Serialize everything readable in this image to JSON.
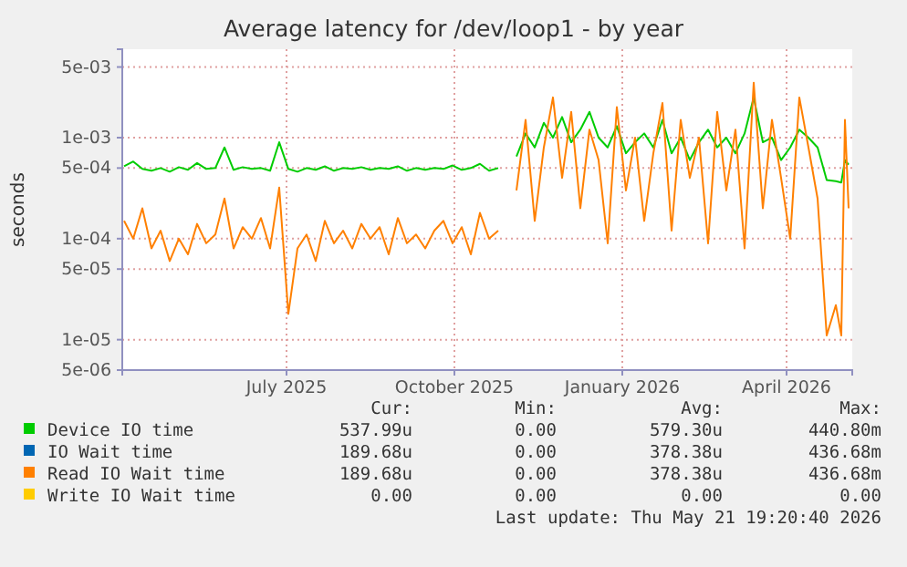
{
  "chart_data": {
    "type": "line",
    "title": "Average latency for /dev/loop1 - by year",
    "ylabel": "seconds",
    "log": true,
    "grid": true,
    "legend": "bottom",
    "x": [
      "2025-04-03",
      "2025-04-08",
      "2025-04-13",
      "2025-04-18",
      "2025-04-23",
      "2025-04-28",
      "2025-05-03",
      "2025-05-08",
      "2025-05-13",
      "2025-05-18",
      "2025-05-23",
      "2025-05-28",
      "2025-06-02",
      "2025-06-07",
      "2025-06-12",
      "2025-06-17",
      "2025-06-22",
      "2025-06-27",
      "2025-07-02",
      "2025-07-07",
      "2025-07-12",
      "2025-07-17",
      "2025-07-22",
      "2025-07-27",
      "2025-08-01",
      "2025-08-06",
      "2025-08-11",
      "2025-08-16",
      "2025-08-21",
      "2025-08-26",
      "2025-08-31",
      "2025-09-05",
      "2025-09-10",
      "2025-09-15",
      "2025-09-20",
      "2025-09-25",
      "2025-09-30",
      "2025-10-05",
      "2025-10-10",
      "2025-10-15",
      "2025-10-20",
      "2025-10-25",
      "2025-10-30",
      "2025-11-04",
      "2025-11-09",
      "2025-11-14",
      "2025-11-19",
      "2025-11-24",
      "2025-11-29",
      "2025-12-04",
      "2025-12-09",
      "2025-12-14",
      "2025-12-19",
      "2025-12-24",
      "2025-12-29",
      "2026-01-03",
      "2026-01-08",
      "2026-01-13",
      "2026-01-18",
      "2026-01-23",
      "2026-01-28",
      "2026-02-02",
      "2026-02-07",
      "2026-02-12",
      "2026-02-17",
      "2026-02-22",
      "2026-02-27",
      "2026-03-04",
      "2026-03-09",
      "2026-03-14",
      "2026-03-19",
      "2026-03-24",
      "2026-03-29",
      "2026-04-03",
      "2026-04-08",
      "2026-04-13",
      "2026-04-18",
      "2026-04-23",
      "2026-04-28",
      "2026-05-01",
      "2026-05-03",
      "2026-05-05"
    ],
    "xlim": [
      "2025-04-02",
      "2026-05-07"
    ],
    "xticks": [
      {
        "value": "2025-07-01",
        "label": "July 2025"
      },
      {
        "value": "2025-10-01",
        "label": "October 2025"
      },
      {
        "value": "2026-01-01",
        "label": "January 2026"
      },
      {
        "value": "2026-04-01",
        "label": "April 2026"
      }
    ],
    "ylim": [
      5e-06,
      0.0075
    ],
    "yticks": [
      {
        "value": 5e-06,
        "label": "5e-06"
      },
      {
        "value": 1e-05,
        "label": "1e-05"
      },
      {
        "value": 5e-05,
        "label": "5e-05"
      },
      {
        "value": 0.0001,
        "label": "1e-04"
      },
      {
        "value": 0.0005,
        "label": "5e-04"
      },
      {
        "value": 0.001,
        "label": "1e-03"
      },
      {
        "value": 0.005,
        "label": "5e-03"
      }
    ],
    "series": [
      {
        "name": "Device IO time",
        "color": "#00cc00",
        "values": [
          0.00052,
          0.00058,
          0.00049,
          0.00047,
          0.0005,
          0.00046,
          0.00051,
          0.00048,
          0.00056,
          0.00049,
          0.0005,
          0.0008,
          0.00048,
          0.00051,
          0.00049,
          0.0005,
          0.00047,
          0.0009,
          0.00049,
          0.00046,
          0.0005,
          0.00048,
          0.00052,
          0.00047,
          0.0005,
          0.00049,
          0.00051,
          0.00048,
          0.0005,
          0.00049,
          0.00052,
          0.00047,
          0.0005,
          0.00048,
          0.0005,
          0.00049,
          0.00053,
          0.00048,
          0.0005,
          0.00055,
          0.00047,
          0.0005,
          null,
          0.00065,
          0.0011,
          0.0008,
          0.0014,
          0.001,
          0.0016,
          0.0009,
          0.0012,
          0.0018,
          0.001,
          0.0008,
          0.0013,
          0.0007,
          0.0009,
          0.0011,
          0.0008,
          0.0015,
          0.0007,
          0.001,
          0.0006,
          0.0009,
          0.0012,
          0.0008,
          0.001,
          0.0007,
          0.0011,
          0.0025,
          0.0009,
          0.001,
          0.0006,
          0.0008,
          0.0012,
          0.001,
          0.0008,
          0.00038,
          0.00037,
          0.00036,
          0.0006,
          0.00054
        ]
      },
      {
        "name": "IO Wait time",
        "color": "#0066b3",
        "values": [
          null,
          null,
          null,
          null,
          null,
          null,
          null,
          null,
          null,
          null,
          null,
          null,
          null,
          null,
          null,
          null,
          null,
          null,
          null,
          null,
          null,
          null,
          null,
          null,
          null,
          null,
          null,
          null,
          null,
          null,
          null,
          null,
          null,
          null,
          null,
          null,
          null,
          null,
          null,
          null,
          null,
          null,
          null,
          null,
          null,
          null,
          null,
          null,
          null,
          null,
          null,
          null,
          null,
          null,
          null,
          null,
          null,
          null,
          null,
          null,
          null,
          null,
          null,
          null,
          null,
          null,
          null,
          null,
          null,
          null,
          null,
          null,
          null,
          null,
          null,
          null,
          null,
          null,
          null,
          null,
          null,
          null
        ]
      },
      {
        "name": "Read IO Wait time",
        "color": "#ff8000",
        "values": [
          0.00015,
          0.0001,
          0.0002,
          8e-05,
          0.00012,
          6e-05,
          0.0001,
          7e-05,
          0.00014,
          9e-05,
          0.00011,
          0.00025,
          8e-05,
          0.00013,
          0.0001,
          0.00016,
          8e-05,
          0.00032,
          1.8e-05,
          8e-05,
          0.00011,
          6e-05,
          0.00015,
          9e-05,
          0.00012,
          8e-05,
          0.00014,
          0.0001,
          0.00013,
          7e-05,
          0.00016,
          9e-05,
          0.00011,
          8e-05,
          0.00012,
          0.00015,
          9e-05,
          0.00013,
          7e-05,
          0.00018,
          0.0001,
          0.00012,
          null,
          0.0003,
          0.0015,
          0.00015,
          0.0008,
          0.0025,
          0.0004,
          0.0018,
          0.0002,
          0.0012,
          0.0006,
          9e-05,
          0.002,
          0.0003,
          0.001,
          0.00015,
          0.0007,
          0.0022,
          0.00012,
          0.0015,
          0.0004,
          0.001,
          9e-05,
          0.0018,
          0.0003,
          0.0012,
          8e-05,
          0.0035,
          0.0002,
          0.0015,
          0.0004,
          0.0001,
          0.0025,
          0.0008,
          0.00025,
          1.1e-05,
          2.2e-05,
          1.1e-05,
          0.0015,
          0.0002
        ]
      },
      {
        "name": "Write IO Wait time",
        "color": "#ffcc00",
        "values": [
          null,
          null,
          null,
          null,
          null,
          null,
          null,
          null,
          null,
          null,
          null,
          null,
          null,
          null,
          null,
          null,
          null,
          null,
          null,
          null,
          null,
          null,
          null,
          null,
          null,
          null,
          null,
          null,
          null,
          null,
          null,
          null,
          null,
          null,
          null,
          null,
          null,
          null,
          null,
          null,
          null,
          null,
          null,
          null,
          null,
          null,
          null,
          null,
          null,
          null,
          null,
          null,
          null,
          null,
          null,
          null,
          null,
          null,
          null,
          null,
          null,
          null,
          null,
          null,
          null,
          null,
          null,
          null,
          null,
          null,
          null,
          null,
          null,
          null,
          null,
          null,
          null,
          null,
          null,
          null,
          null,
          null
        ]
      }
    ],
    "annotations": [
      "Cur:",
      "Min:",
      "Avg:",
      "Max:",
      "537.99u",
      "0.00",
      "579.30u",
      "440.80m",
      "189.68u",
      "0.00",
      "378.38u",
      "436.68m",
      "189.68u",
      "0.00",
      "378.38u",
      "436.68m",
      "0.00",
      "0.00",
      "0.00",
      "0.00",
      "Last update: Thu May 21 19:20:40 2026"
    ]
  }
}
